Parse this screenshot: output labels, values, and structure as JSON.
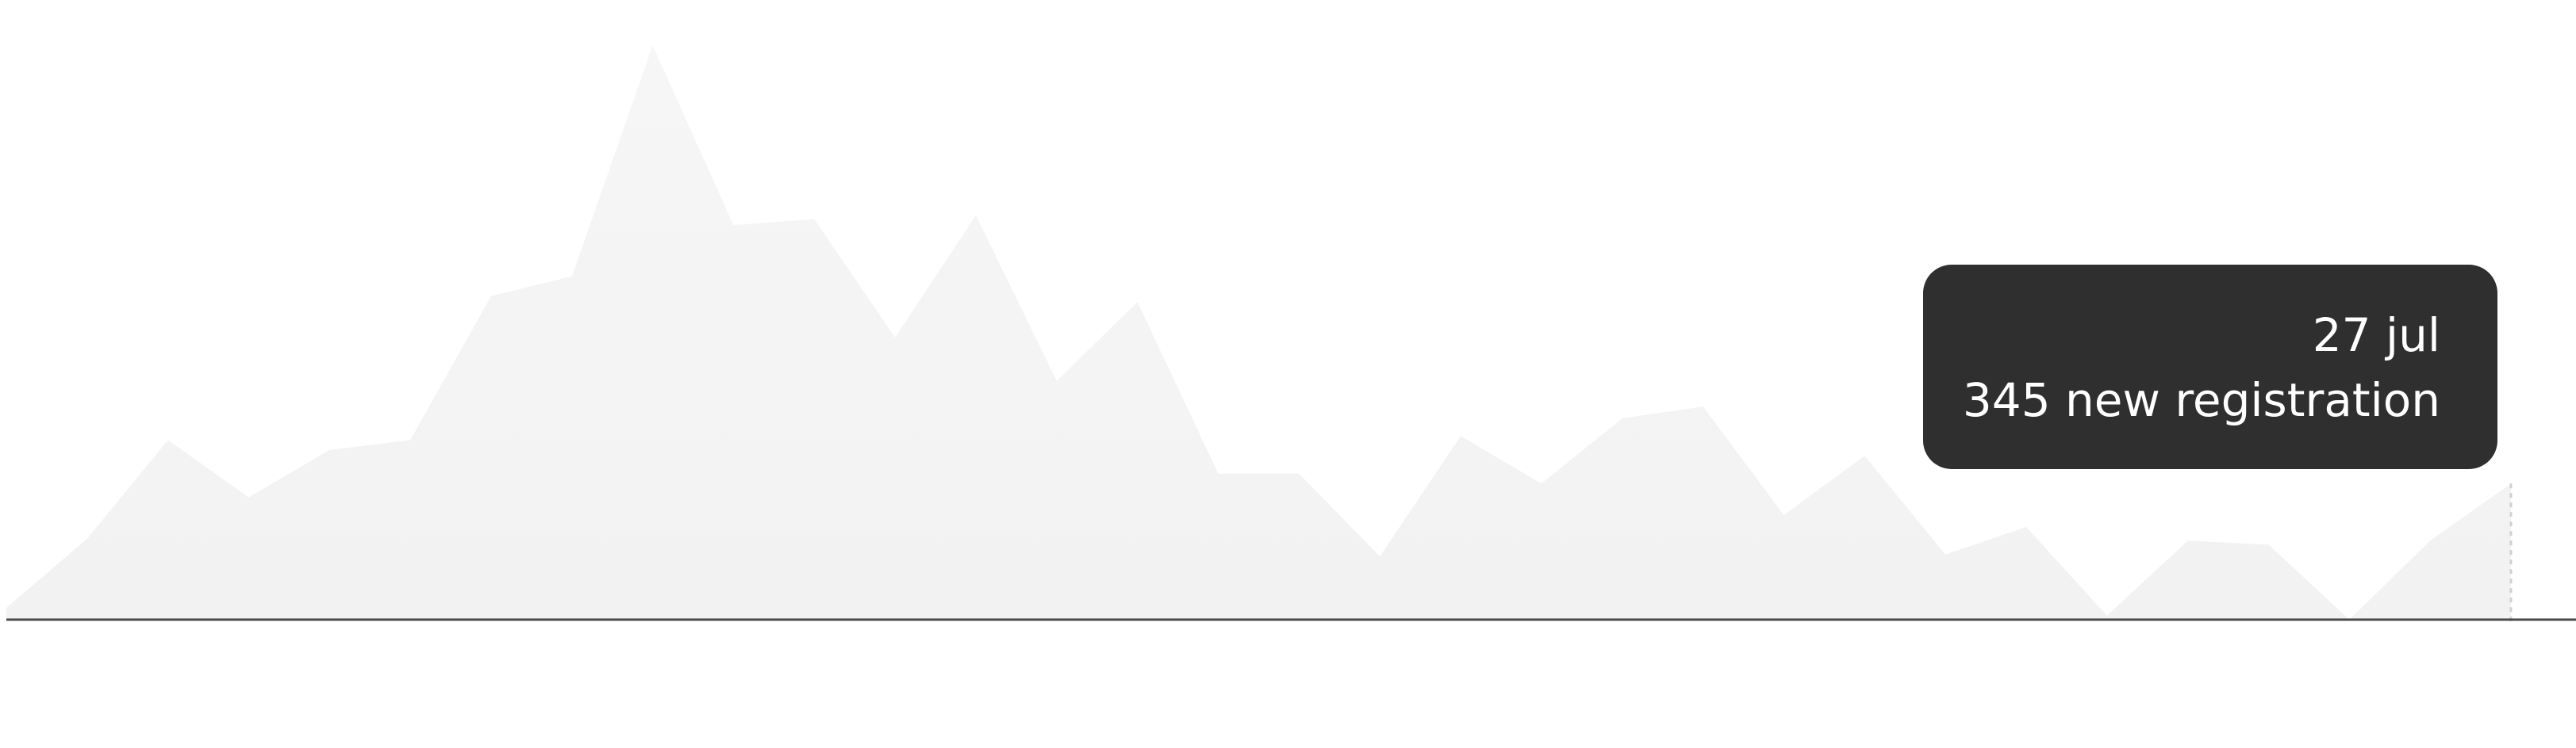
{
  "colors": {
    "area_fill": "#f3f3f3",
    "baseline": "#4a4a4a",
    "tooltip_background": "#2f2f2f",
    "tooltip_text": "#ffffff"
  },
  "tooltip": {
    "date": "27 jul",
    "value_text": "345 new registration"
  },
  "chart_data": {
    "type": "area",
    "title": "",
    "xlabel": "",
    "ylabel": "",
    "grid": false,
    "legend": "none",
    "ylim": [
      0,
      1500
    ],
    "hovered_index": 31,
    "series": [
      {
        "values": [
          30,
          205,
          455,
          310,
          430,
          455,
          820,
          870,
          1455,
          1000,
          1015,
          715,
          1025,
          605,
          805,
          370,
          370,
          160,
          465,
          345,
          510,
          540,
          265,
          415,
          165,
          235,
          10,
          200,
          190,
          0,
          200,
          345
        ]
      }
    ]
  }
}
